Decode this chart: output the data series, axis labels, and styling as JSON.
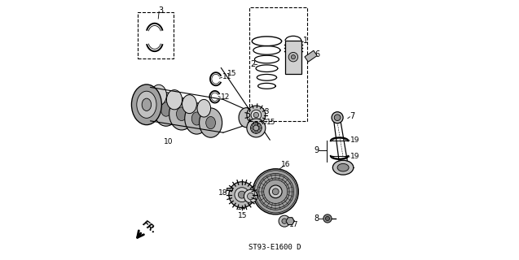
{
  "bg_color": "#ffffff",
  "line_color": "#000000",
  "ref_code": "ST93-E1600 D"
}
